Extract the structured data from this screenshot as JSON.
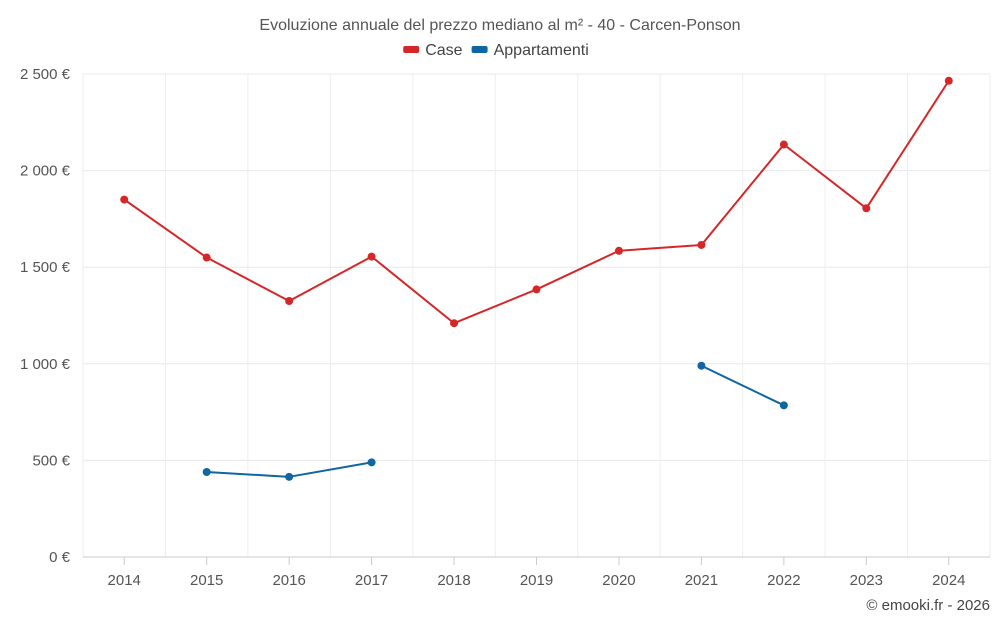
{
  "chart_data": {
    "type": "line",
    "title": "Evoluzione annuale del prezzo mediano al m² - 40 - Carcen-Ponson",
    "categories": [
      "2014",
      "2015",
      "2016",
      "2017",
      "2018",
      "2019",
      "2020",
      "2021",
      "2022",
      "2023",
      "2024"
    ],
    "series": [
      {
        "name": "Case",
        "color": "#d62728",
        "values": [
          1850,
          1550,
          1325,
          1555,
          1210,
          1385,
          1585,
          1615,
          2135,
          1805,
          2465
        ]
      },
      {
        "name": "Appartamenti",
        "color": "#0e66a3",
        "values": [
          null,
          440,
          415,
          490,
          null,
          null,
          null,
          990,
          785,
          null,
          null
        ]
      }
    ],
    "ylim": [
      0,
      2500
    ],
    "yticks": [
      0,
      500,
      1000,
      1500,
      2000,
      2500
    ],
    "ytick_labels": [
      "0 €",
      "500 €",
      "1 000 €",
      "1 500 €",
      "2 000 €",
      "2 500 €"
    ],
    "grid": true,
    "legend_position": "top-center",
    "xlabel": "",
    "ylabel": ""
  },
  "credit": "© emooki.fr - 2026"
}
